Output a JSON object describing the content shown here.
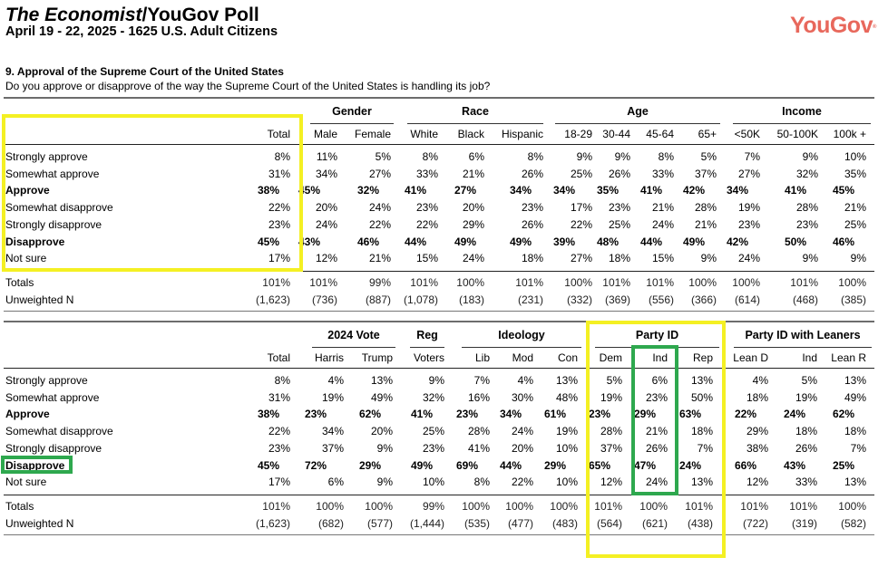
{
  "header": {
    "title_italic": "The Economist",
    "title_rest": "/YouGov Poll",
    "subtitle": "April 19 - 22, 2025 - 1625 U.S. Adult Citizens",
    "logo": "YouGov",
    "logo_mark": "®"
  },
  "question": {
    "title": "9. Approval of the Supreme Court of the United States",
    "text": "Do you approve or disapprove of the way the Supreme Court of the United States is handling its job?"
  },
  "row_labels": [
    "Strongly approve",
    "Somewhat approve",
    "Approve",
    "Somewhat disapprove",
    "Strongly disapprove",
    "Disapprove",
    "Not sure"
  ],
  "bold_rows": [
    2,
    5
  ],
  "footer_labels": [
    "Totals",
    "Unweighted N"
  ],
  "table1": {
    "groups": [
      {
        "label": "Gender"
      },
      {
        "label": "Race"
      },
      {
        "label": "Age"
      },
      {
        "label": "Income"
      }
    ],
    "columns": [
      {
        "label": "Total",
        "values": [
          "8%",
          "31%",
          "38%",
          "22%",
          "23%",
          "45%",
          "17%"
        ],
        "totals": "101%",
        "n": "(1,623)"
      },
      {
        "label": "Male",
        "values": [
          "11%",
          "34%",
          "45%",
          "20%",
          "24%",
          "43%",
          "12%"
        ],
        "totals": "101%",
        "n": "(736)"
      },
      {
        "label": "Female",
        "values": [
          "5%",
          "27%",
          "32%",
          "24%",
          "22%",
          "46%",
          "21%"
        ],
        "totals": "99%",
        "n": "(887)"
      },
      {
        "label": "White",
        "values": [
          "8%",
          "33%",
          "41%",
          "23%",
          "22%",
          "44%",
          "15%"
        ],
        "totals": "101%",
        "n": "(1,078)"
      },
      {
        "label": "Black",
        "values": [
          "6%",
          "21%",
          "27%",
          "20%",
          "29%",
          "49%",
          "24%"
        ],
        "totals": "100%",
        "n": "(183)"
      },
      {
        "label": "Hispanic",
        "values": [
          "8%",
          "26%",
          "34%",
          "23%",
          "26%",
          "49%",
          "18%"
        ],
        "totals": "101%",
        "n": "(231)"
      },
      {
        "label": "18-29",
        "values": [
          "9%",
          "25%",
          "34%",
          "17%",
          "22%",
          "39%",
          "27%"
        ],
        "totals": "100%",
        "n": "(332)"
      },
      {
        "label": "30-44",
        "values": [
          "9%",
          "26%",
          "35%",
          "23%",
          "25%",
          "48%",
          "18%"
        ],
        "totals": "101%",
        "n": "(369)"
      },
      {
        "label": "45-64",
        "values": [
          "8%",
          "33%",
          "41%",
          "21%",
          "24%",
          "44%",
          "15%"
        ],
        "totals": "101%",
        "n": "(556)"
      },
      {
        "label": "65+",
        "values": [
          "5%",
          "37%",
          "42%",
          "28%",
          "21%",
          "49%",
          "9%"
        ],
        "totals": "100%",
        "n": "(366)"
      },
      {
        "label": "<50K",
        "values": [
          "7%",
          "27%",
          "34%",
          "19%",
          "23%",
          "42%",
          "24%"
        ],
        "totals": "100%",
        "n": "(614)"
      },
      {
        "label": "50-100K",
        "values": [
          "9%",
          "32%",
          "41%",
          "28%",
          "23%",
          "50%",
          "9%"
        ],
        "totals": "101%",
        "n": "(468)"
      },
      {
        "label": "100k +",
        "values": [
          "10%",
          "35%",
          "45%",
          "21%",
          "25%",
          "46%",
          "9%"
        ],
        "totals": "100%",
        "n": "(385)"
      }
    ]
  },
  "table2": {
    "groups": [
      {
        "label": "2024 Vote"
      },
      {
        "label": "Reg"
      },
      {
        "label": "Ideology"
      },
      {
        "label": "Party ID"
      },
      {
        "label": "Party ID with Leaners"
      }
    ],
    "columns": [
      {
        "label": "Total",
        "values": [
          "8%",
          "31%",
          "38%",
          "22%",
          "23%",
          "45%",
          "17%"
        ],
        "totals": "101%",
        "n": "(1,623)"
      },
      {
        "label": "Harris",
        "values": [
          "4%",
          "19%",
          "23%",
          "34%",
          "37%",
          "72%",
          "6%"
        ],
        "totals": "100%",
        "n": "(682)"
      },
      {
        "label": "Trump",
        "values": [
          "13%",
          "49%",
          "62%",
          "20%",
          "9%",
          "29%",
          "9%"
        ],
        "totals": "100%",
        "n": "(577)"
      },
      {
        "label": "Voters",
        "values": [
          "9%",
          "32%",
          "41%",
          "25%",
          "23%",
          "49%",
          "10%"
        ],
        "totals": "99%",
        "n": "(1,444)"
      },
      {
        "label": "Lib",
        "values": [
          "7%",
          "16%",
          "23%",
          "28%",
          "41%",
          "69%",
          "8%"
        ],
        "totals": "100%",
        "n": "(535)"
      },
      {
        "label": "Mod",
        "values": [
          "4%",
          "30%",
          "34%",
          "24%",
          "20%",
          "44%",
          "22%"
        ],
        "totals": "100%",
        "n": "(477)"
      },
      {
        "label": "Con",
        "values": [
          "13%",
          "48%",
          "61%",
          "19%",
          "10%",
          "29%",
          "10%"
        ],
        "totals": "100%",
        "n": "(483)"
      },
      {
        "label": "Dem",
        "values": [
          "5%",
          "19%",
          "23%",
          "28%",
          "37%",
          "65%",
          "12%"
        ],
        "totals": "101%",
        "n": "(564)"
      },
      {
        "label": "Ind",
        "values": [
          "6%",
          "23%",
          "29%",
          "21%",
          "26%",
          "47%",
          "24%"
        ],
        "totals": "100%",
        "n": "(621)"
      },
      {
        "label": "Rep",
        "values": [
          "13%",
          "50%",
          "63%",
          "18%",
          "7%",
          "24%",
          "13%"
        ],
        "totals": "101%",
        "n": "(438)"
      },
      {
        "label": "Lean D",
        "values": [
          "4%",
          "18%",
          "22%",
          "29%",
          "38%",
          "66%",
          "12%"
        ],
        "totals": "101%",
        "n": "(722)"
      },
      {
        "label": "Ind",
        "values": [
          "5%",
          "19%",
          "24%",
          "18%",
          "26%",
          "43%",
          "33%"
        ],
        "totals": "101%",
        "n": "(319)"
      },
      {
        "label": "Lean R",
        "values": [
          "13%",
          "49%",
          "62%",
          "18%",
          "7%",
          "25%",
          "13%"
        ],
        "totals": "100%",
        "n": "(582)"
      }
    ]
  },
  "highlights": {
    "yellow": "#f4f023",
    "green": "#2ea84e",
    "logo_color": "#e8685c"
  }
}
